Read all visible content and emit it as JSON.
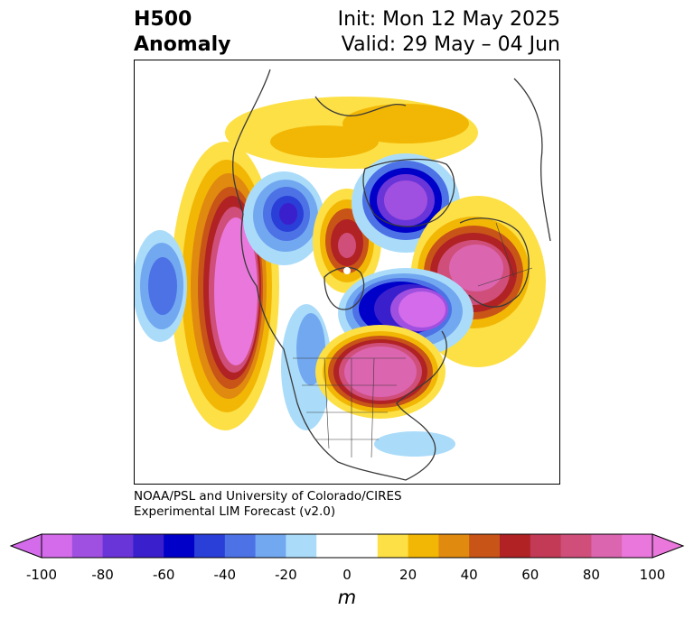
{
  "title": {
    "variable": "H500",
    "kind": "Anomaly",
    "init": "Init: Mon 12 May 2025",
    "valid": "Valid: 29 May – 04 Jun"
  },
  "credit": {
    "line1": "NOAA/PSL and University of Colorado/CIRES",
    "line2": "Experimental LIM Forecast (v2.0)"
  },
  "colorbar": {
    "unit": "m",
    "ticks": [
      "-100",
      "-80",
      "-60",
      "-40",
      "-20",
      "0",
      "20",
      "40",
      "60",
      "80",
      "100"
    ],
    "colors": [
      "#d36bea",
      "#a050e0",
      "#6a35d8",
      "#3a1fcc",
      "#0000c8",
      "#2a3ed8",
      "#4c72e6",
      "#72a8f0",
      "#aadcfa",
      "#ffffff",
      "#ffffff",
      "#fde046",
      "#f2b705",
      "#e08a10",
      "#c85418",
      "#b02224",
      "#c23a55",
      "#cf4f7a",
      "#dc65b0",
      "#ea78dc"
    ]
  },
  "map_anomalies": [
    {
      "region": "Northeast Pacific",
      "sign": "positive",
      "peak_m": 100
    },
    {
      "region": "Central Pacific",
      "sign": "negative",
      "peak_m": -40
    },
    {
      "region": "Northwest Canada",
      "sign": "negative",
      "peak_m": -80
    },
    {
      "region": "Arctic Canada",
      "sign": "positive",
      "peak_m": 60
    },
    {
      "region": "Greenland / Canadian Archipelago",
      "sign": "negative",
      "peak_m": -100
    },
    {
      "region": "Northeast Atlantic / Scandinavia",
      "sign": "positive",
      "peak_m": 90
    },
    {
      "region": "Hudson Bay / Labrador",
      "sign": "negative",
      "peak_m": -100
    },
    {
      "region": "Eastern North America",
      "sign": "positive",
      "peak_m": 100
    }
  ]
}
